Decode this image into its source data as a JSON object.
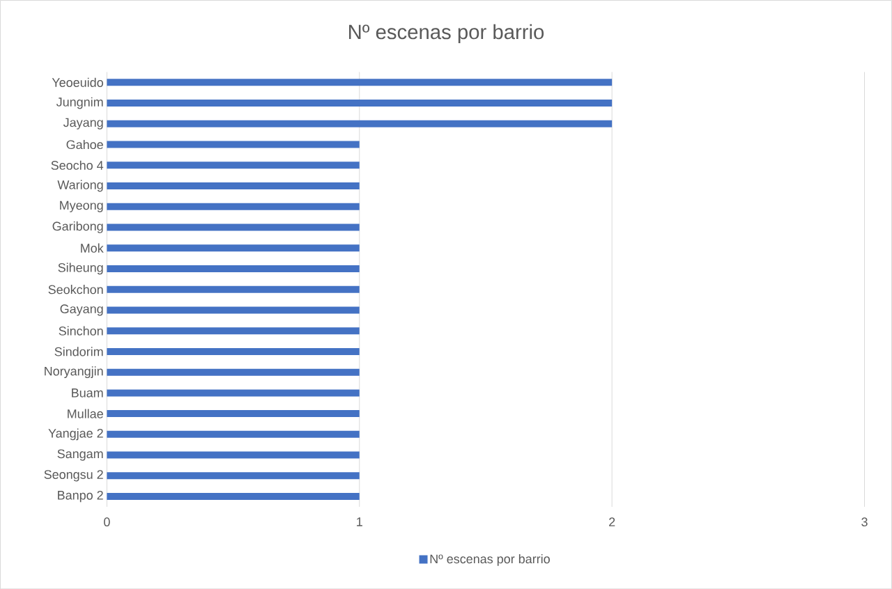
{
  "chart_data": {
    "type": "bar",
    "orientation": "horizontal",
    "title": "Nº escenas por barrio",
    "categories": [
      "Yeoeuido",
      "Jungnim",
      "Jayang",
      "Gahoe",
      "Seocho 4",
      "Wariong",
      "Myeong",
      "Garibong",
      "Mok",
      "Siheung",
      "Seokchon",
      "Gayang",
      "Sinchon",
      "Sindorim",
      "Noryangjin",
      "Buam",
      "Mullae",
      "Yangjae 2",
      "Sangam",
      "Seongsu 2",
      "Banpo 2"
    ],
    "series": [
      {
        "name": "Nº escenas por barrio",
        "color": "#4472c4",
        "values": [
          2,
          2,
          2,
          1,
          1,
          1,
          1,
          1,
          1,
          1,
          1,
          1,
          1,
          1,
          1,
          1,
          1,
          1,
          1,
          1,
          1
        ]
      }
    ],
    "xlim": [
      0,
      3
    ],
    "xticks": [
      0,
      1,
      2,
      3
    ],
    "grid": "x",
    "legend": "bottom"
  }
}
